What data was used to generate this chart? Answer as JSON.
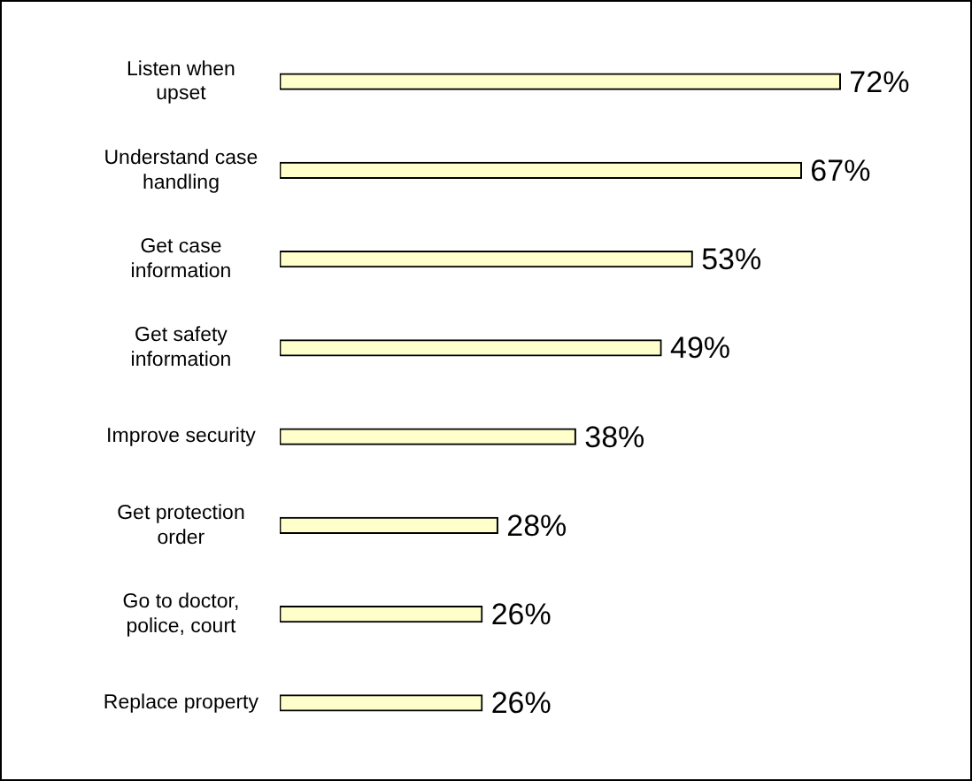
{
  "chart_data": {
    "type": "bar",
    "orientation": "horizontal",
    "categories": [
      "Listen when upset",
      "Understand case handling",
      "Get case information",
      "Get safety information",
      "Improve security",
      "Get protection order",
      "Go to doctor, police, court",
      "Replace property"
    ],
    "values": [
      72,
      67,
      53,
      49,
      38,
      28,
      26,
      26
    ],
    "value_labels": [
      "72%",
      "67%",
      "53%",
      "49%",
      "38%",
      "28%",
      "26%",
      "26%"
    ],
    "color": "#ffffcc",
    "legend": false,
    "tick_labels": "y"
  }
}
